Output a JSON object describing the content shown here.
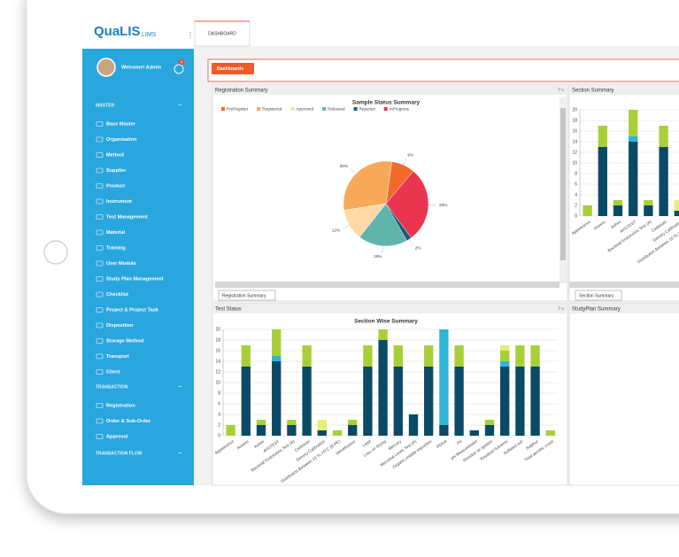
{
  "header": {
    "logo": "QuaLIS",
    "logo_suffix": "LIMS",
    "tab": "DASHBOARD",
    "button": "Dashboards"
  },
  "user": {
    "welcome": "Welcome! Admin",
    "badge": "4"
  },
  "sidebar": {
    "sections": [
      {
        "title": "MASTER",
        "items": [
          "Base Master",
          "Organisation",
          "Method",
          "Supplier",
          "Product",
          "Instrument",
          "Test Management",
          "Material",
          "Training",
          "User Module",
          "Study Plan Management",
          "Checklist",
          "Project & Project Task",
          "Disposition",
          "Storage Method",
          "Transport",
          "Client"
        ]
      },
      {
        "title": "TRANSACTION",
        "items": [
          "Registration",
          "Order & Sub-Order",
          "Approval"
        ]
      },
      {
        "title": "TRANSACTION FLOW",
        "items": []
      }
    ]
  },
  "panels": [
    "Registration Summary",
    "Section Summary",
    "Test Status",
    "StudyPlan Summary"
  ],
  "panel_tabs": [
    "Registration Summary",
    "Section Summary"
  ],
  "chart_data": [
    {
      "type": "pie",
      "title": "Sample Status Summary",
      "categories": [
        "PreRegister",
        "Registered",
        "Approved",
        "Released",
        "Rejected",
        "InProgress"
      ],
      "values": [
        9,
        30,
        12,
        19,
        2,
        29
      ],
      "value_labels": [
        "9%",
        "30%",
        "12%",
        "19%",
        "2%",
        "29%"
      ],
      "colors": [
        "#f26b2b",
        "#f7a95a",
        "#fdd9a8",
        "#5fb5ac",
        "#1e5a7a",
        "#ea3550"
      ]
    },
    {
      "type": "bar",
      "stacked": true,
      "title": "Section Wise Summary",
      "categories": [
        "Appearance",
        "Arsenic",
        "Ashes",
        "AVGTEST",
        "Bacterial Endotoxins Test (A)",
        "Cadmium",
        "Density Calibration",
        "Distribution Between 10 To 70°C (B PE)",
        "Identification",
        "Lead",
        "Loss on drying",
        "Mercury",
        "Microbial Limits Test (A)",
        "Organic volatile impurities",
        "PDDA",
        "Ph",
        "pH Measurement",
        "Residue on Ignition",
        "Residual Solvents",
        "Sulfated ash",
        "Sulphur",
        "Total aerobic count"
      ],
      "series": [
        {
          "color": "#0b4a66",
          "values": [
            0,
            13,
            2,
            14,
            2,
            13,
            1,
            0,
            2,
            13,
            18,
            13,
            4,
            13,
            2,
            13,
            1,
            2,
            13,
            13,
            13,
            0
          ]
        },
        {
          "color": "#30b4d6",
          "values": [
            0,
            0,
            0,
            1,
            0,
            0,
            0,
            0,
            0,
            0,
            0,
            0,
            0,
            0,
            18,
            0,
            0,
            0,
            1,
            0,
            0,
            0
          ]
        },
        {
          "color": "#a9cf38",
          "values": [
            2,
            4,
            1,
            5,
            1,
            4,
            0,
            1,
            1,
            4,
            2,
            4,
            0,
            4,
            0,
            4,
            0,
            1,
            2,
            4,
            4,
            1
          ]
        },
        {
          "color": "#e5ef74",
          "values": [
            0,
            0,
            0,
            0,
            0,
            0,
            2,
            0,
            0,
            0,
            0,
            0,
            0,
            0,
            0,
            0,
            0,
            0,
            1,
            0,
            0,
            0
          ]
        }
      ],
      "ylim": [
        0,
        20
      ],
      "yticks": [
        0,
        2,
        4,
        6,
        8,
        10,
        12,
        14,
        16,
        18,
        20
      ],
      "grid": true
    }
  ]
}
